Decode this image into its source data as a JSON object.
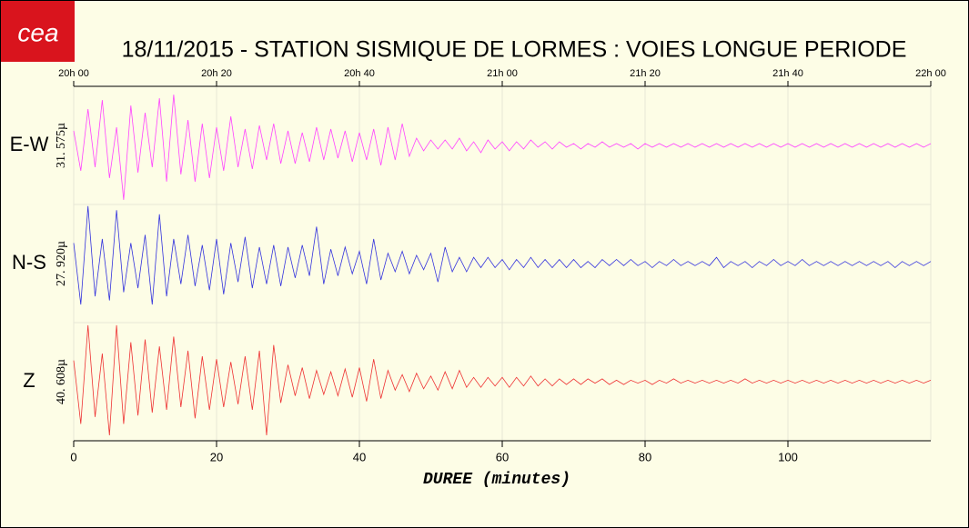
{
  "chart_data": {
    "type": "seismogram",
    "logo": "cea",
    "title": "18/11/2015  -  STATION SISMIQUE DE LORMES : VOIES LONGUE PERIODE",
    "xlabel": "DUREE (minutes)",
    "xlim": [
      0,
      120
    ],
    "xticks": [
      0,
      20,
      40,
      60,
      80,
      100
    ],
    "top_ticks": [
      {
        "value": 0,
        "label": "20h 00"
      },
      {
        "value": 20,
        "label": "20h 20"
      },
      {
        "value": 40,
        "label": "20h 40"
      },
      {
        "value": 60,
        "label": "21h 00"
      },
      {
        "value": 80,
        "label": "21h 20"
      },
      {
        "value": 100,
        "label": "21h 40"
      },
      {
        "value": 120,
        "label": "22h 00"
      }
    ],
    "grid": true,
    "x": [
      0,
      1,
      2,
      3,
      4,
      5,
      6,
      7,
      8,
      9,
      10,
      11,
      12,
      13,
      14,
      15,
      16,
      17,
      18,
      19,
      20,
      21,
      22,
      23,
      24,
      25,
      26,
      27,
      28,
      29,
      30,
      31,
      32,
      33,
      34,
      35,
      36,
      37,
      38,
      39,
      40,
      41,
      42,
      43,
      44,
      45,
      46,
      47,
      48,
      49,
      50,
      51,
      52,
      53,
      54,
      55,
      56,
      57,
      58,
      59,
      60,
      61,
      62,
      63,
      64,
      65,
      66,
      67,
      68,
      69,
      70,
      71,
      72,
      73,
      74,
      75,
      76,
      77,
      78,
      79,
      80,
      81,
      82,
      83,
      84,
      85,
      86,
      87,
      88,
      89,
      90,
      91,
      92,
      93,
      94,
      95,
      96,
      97,
      98,
      99,
      100,
      101,
      102,
      103,
      104,
      105,
      106,
      107,
      108,
      109,
      110,
      111,
      112,
      113,
      114,
      115,
      116,
      117,
      118,
      119,
      120
    ],
    "series": [
      {
        "name": "E-W",
        "color": "#ff44ff",
        "scale": {
          "value": 31.575,
          "label": "31. 575µ"
        },
        "values": [
          8,
          -14,
          20,
          -12,
          25,
          -18,
          10,
          -30,
          22,
          -15,
          18,
          -12,
          26,
          -20,
          28,
          -16,
          14,
          -20,
          12,
          -18,
          10,
          -14,
          16,
          -12,
          9,
          -13,
          11,
          -8,
          12,
          -10,
          8,
          -10,
          7,
          -9,
          10,
          -8,
          9,
          -7,
          8,
          -9,
          7,
          -8,
          9,
          -11,
          10,
          -8,
          12,
          -6,
          4,
          -3,
          3,
          -2,
          3,
          -2,
          4,
          -3,
          2,
          -4,
          3,
          -2,
          2,
          -3,
          2,
          -2,
          3,
          -1,
          2,
          -2,
          2,
          -1,
          1,
          -2,
          1,
          -1,
          2,
          -1,
          1,
          -1,
          1,
          -2,
          1,
          -1,
          1,
          -1,
          1,
          -1,
          1,
          -1,
          1,
          -1,
          1,
          -1,
          1,
          -1,
          1,
          -1,
          1,
          -1,
          1,
          -1,
          1,
          -1,
          1,
          -1,
          1,
          -1,
          1,
          -1,
          1,
          -1,
          1,
          -1,
          1,
          -1,
          1,
          -1,
          1,
          -1,
          1,
          -1,
          1
        ]
      },
      {
        "name": "N-S",
        "color": "#3333dd",
        "scale": {
          "value": 27.92,
          "label": "27. 920µ"
        },
        "values": [
          10,
          -20,
          28,
          -16,
          12,
          -18,
          26,
          -14,
          10,
          -12,
          14,
          -20,
          24,
          -16,
          12,
          -10,
          14,
          -11,
          9,
          -13,
          12,
          -15,
          10,
          -9,
          13,
          -12,
          8,
          -10,
          9,
          -11,
          8,
          -7,
          9,
          -6,
          18,
          -10,
          7,
          -6,
          8,
          -5,
          6,
          -10,
          12,
          -8,
          5,
          -4,
          6,
          -5,
          4,
          -3,
          5,
          -9,
          8,
          -4,
          3,
          -4,
          3,
          -2,
          3,
          -2,
          2,
          -3,
          2,
          -2,
          3,
          -2,
          2,
          -2,
          2,
          -2,
          2,
          -2,
          1,
          -2,
          2,
          -1,
          2,
          -1,
          2,
          -1,
          1,
          -2,
          1,
          -1,
          2,
          -1,
          1,
          -1,
          1,
          -1,
          3,
          -2,
          1,
          -1,
          1,
          -2,
          1,
          -1,
          2,
          -1,
          1,
          -1,
          2,
          -1,
          1,
          -1,
          1,
          -1,
          1,
          -1,
          1,
          -1,
          1,
          -1,
          1,
          -2,
          1,
          -1,
          1,
          -1,
          1
        ]
      },
      {
        "name": "Z",
        "color": "#ee3333",
        "scale": {
          "value": 40.608,
          "label": "40. 608µ"
        },
        "values": [
          15,
          -30,
          40,
          -25,
          20,
          -38,
          40,
          -30,
          28,
          -24,
          30,
          -22,
          25,
          -20,
          32,
          -18,
          22,
          -26,
          18,
          -20,
          16,
          -18,
          14,
          -16,
          18,
          -20,
          22,
          -38,
          26,
          -15,
          12,
          -10,
          10,
          -12,
          8,
          -9,
          7,
          -10,
          9,
          -11,
          10,
          -14,
          16,
          -12,
          8,
          -6,
          5,
          -7,
          6,
          -5,
          4,
          -6,
          7,
          -5,
          8,
          -4,
          3,
          -4,
          3,
          -3,
          3,
          -4,
          3,
          -3,
          4,
          -3,
          2,
          -3,
          2,
          -2,
          2,
          -2,
          2,
          -1,
          2,
          -2,
          1,
          -2,
          1,
          -1,
          1,
          -2,
          1,
          -1,
          2,
          -1,
          1,
          -1,
          1,
          -1,
          1,
          -1,
          1,
          -1,
          2,
          -1,
          1,
          -1,
          1,
          -1,
          1,
          -1,
          1,
          -1,
          1,
          -1,
          1,
          -1,
          1,
          -1,
          1,
          -1,
          1,
          -1,
          1,
          -1,
          1,
          -1,
          1,
          -1,
          1
        ]
      }
    ]
  }
}
